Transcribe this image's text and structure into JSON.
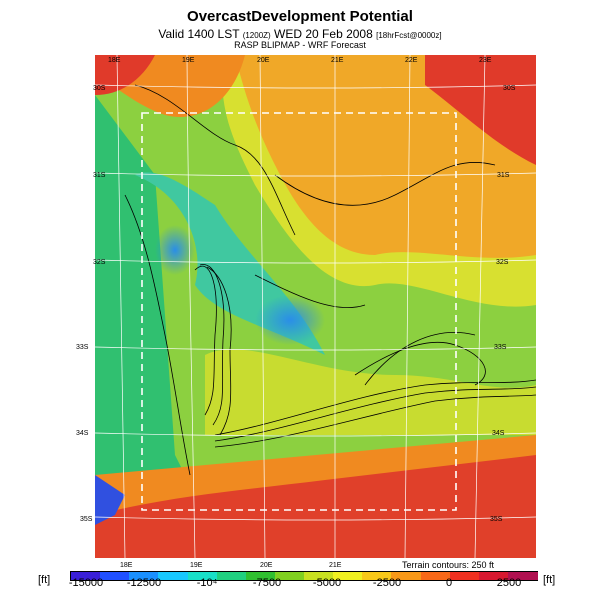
{
  "header": {
    "title": "OvercastDevelopment Potential",
    "valid_line": "Valid 1400 LST",
    "valid_small": "(1200Z)",
    "date_line": "WED 20 Feb 2008",
    "run_small": "[18hrFcst@0000z]",
    "source": "RASP BLIPMAP - WRF Forecast"
  },
  "map": {
    "lon_ticks_top": [
      "18E",
      "19E",
      "20E",
      "21E",
      "22E",
      "23E"
    ],
    "lon_ticks_bottom": [
      "18E",
      "19E",
      "20E",
      "21E"
    ],
    "lat_ticks_left": [
      "30S",
      "31S",
      "32S",
      "33S",
      "34S",
      "35S"
    ],
    "lat_ticks_right": [
      "30S",
      "31S",
      "32S",
      "33S",
      "34S",
      "35S"
    ],
    "terrain_note": "Terrain contours: 250 ft",
    "colors": {
      "ocean": "#d62d2d",
      "high": "#f0a020",
      "mid": "#8cd23c",
      "low": "#30c8a0",
      "min": "#2888e0"
    }
  },
  "colorbar": {
    "unit_left": "[ft]",
    "unit_right": "[ft]",
    "labels": [
      "-15000",
      "-12500",
      "-10⁴",
      "-7500",
      "-5000",
      "-2500",
      "0",
      "2500"
    ],
    "colors": [
      "#3a1fd8",
      "#2050ff",
      "#1a90ff",
      "#18c8ff",
      "#18e0c8",
      "#20d080",
      "#30c030",
      "#80d020",
      "#c8e020",
      "#f0f020",
      "#f8c818",
      "#f89818",
      "#f86818",
      "#f03020",
      "#d81830",
      "#b01050"
    ]
  }
}
